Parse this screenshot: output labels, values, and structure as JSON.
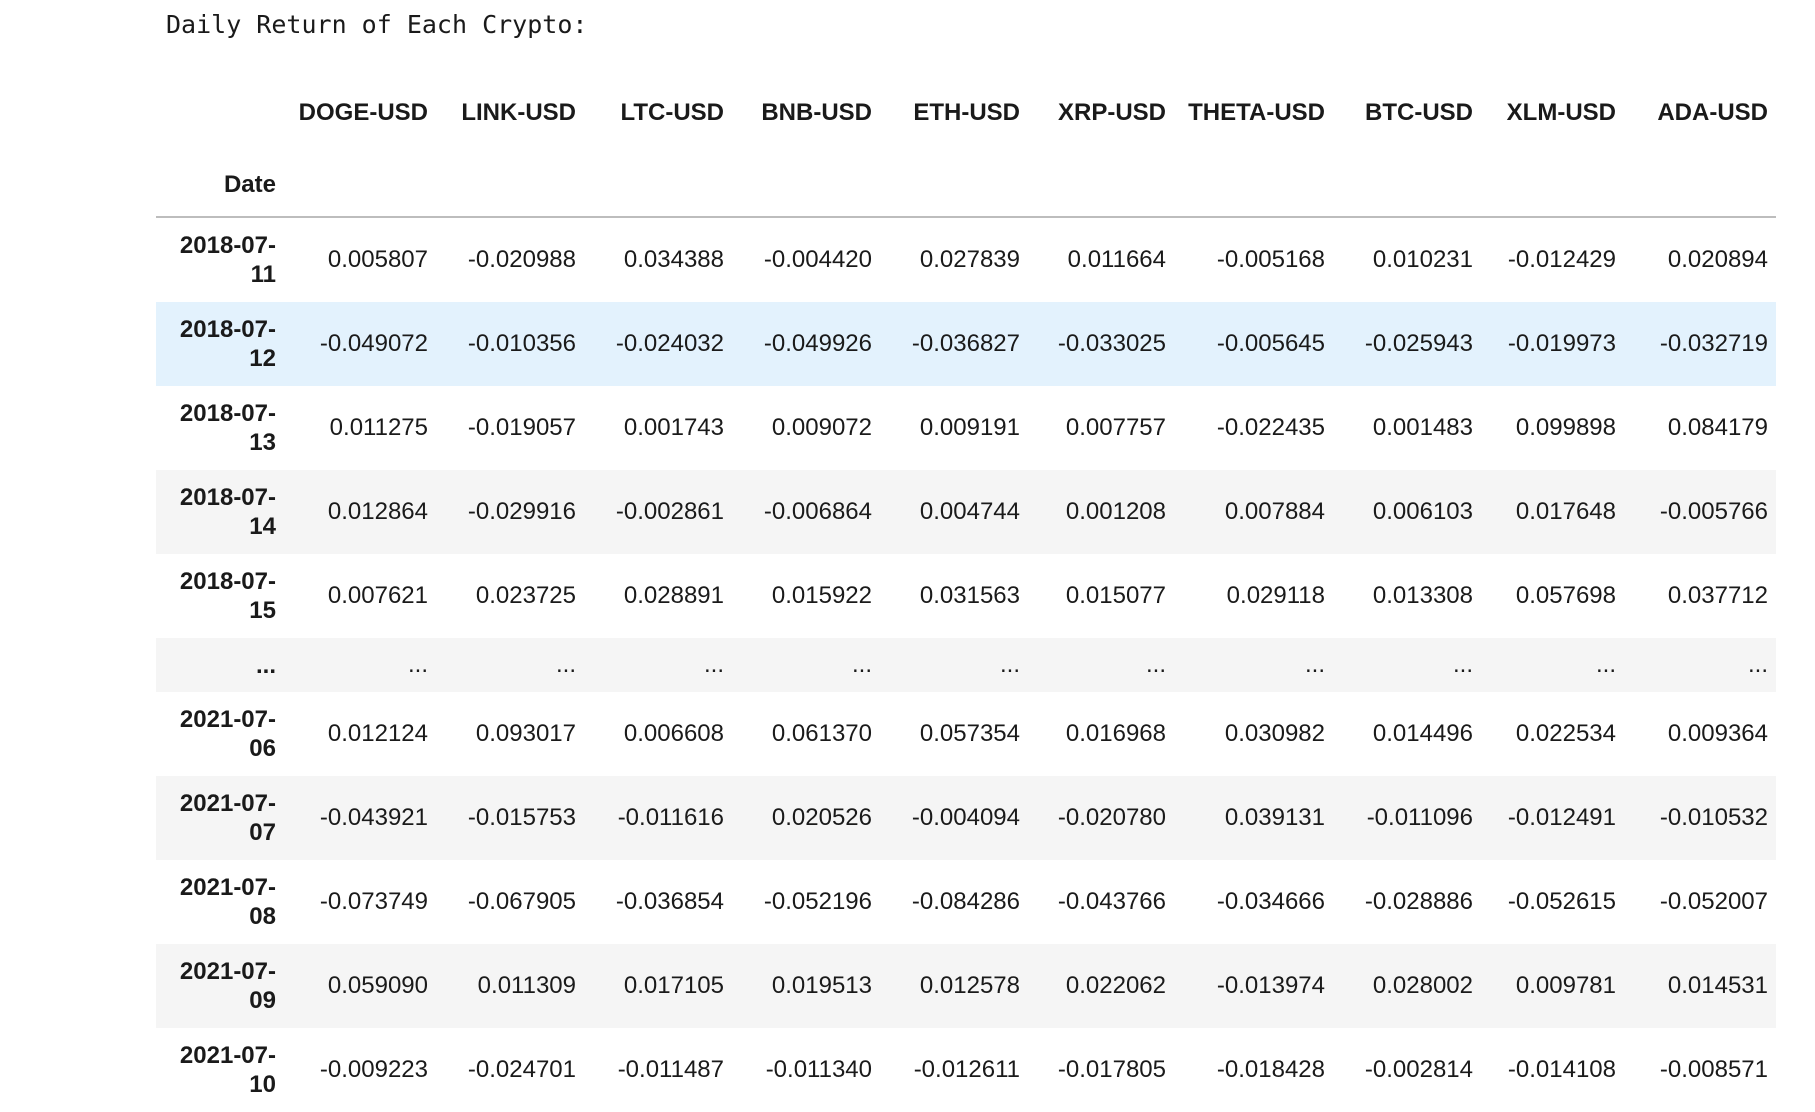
{
  "output": {
    "title": "Daily Return of Each Crypto:"
  },
  "table": {
    "index_name": "Date",
    "columns": [
      "DOGE-USD",
      "LINK-USD",
      "LTC-USD",
      "BNB-USD",
      "ETH-USD",
      "XRP-USD",
      "THETA-USD",
      "BTC-USD",
      "XLM-USD",
      "ADA-USD"
    ],
    "rows": [
      {
        "date": "2018-07-11",
        "values": [
          "0.005807",
          "-0.020988",
          "0.034388",
          "-0.004420",
          "0.027839",
          "0.011664",
          "-0.005168",
          "0.010231",
          "-0.012429",
          "0.020894"
        ]
      },
      {
        "date": "2018-07-12",
        "values": [
          "-0.049072",
          "-0.010356",
          "-0.024032",
          "-0.049926",
          "-0.036827",
          "-0.033025",
          "-0.005645",
          "-0.025943",
          "-0.019973",
          "-0.032719"
        ]
      },
      {
        "date": "2018-07-13",
        "values": [
          "0.011275",
          "-0.019057",
          "0.001743",
          "0.009072",
          "0.009191",
          "0.007757",
          "-0.022435",
          "0.001483",
          "0.099898",
          "0.084179"
        ]
      },
      {
        "date": "2018-07-14",
        "values": [
          "0.012864",
          "-0.029916",
          "-0.002861",
          "-0.006864",
          "0.004744",
          "0.001208",
          "0.007884",
          "0.006103",
          "0.017648",
          "-0.005766"
        ]
      },
      {
        "date": "2018-07-15",
        "values": [
          "0.007621",
          "0.023725",
          "0.028891",
          "0.015922",
          "0.031563",
          "0.015077",
          "0.029118",
          "0.013308",
          "0.057698",
          "0.037712"
        ]
      },
      {
        "date": "...",
        "values": [
          "...",
          "...",
          "...",
          "...",
          "...",
          "...",
          "...",
          "...",
          "...",
          "..."
        ]
      },
      {
        "date": "2021-07-06",
        "values": [
          "0.012124",
          "0.093017",
          "0.006608",
          "0.061370",
          "0.057354",
          "0.016968",
          "0.030982",
          "0.014496",
          "0.022534",
          "0.009364"
        ]
      },
      {
        "date": "2021-07-07",
        "values": [
          "-0.043921",
          "-0.015753",
          "-0.011616",
          "0.020526",
          "-0.004094",
          "-0.020780",
          "0.039131",
          "-0.011096",
          "-0.012491",
          "-0.010532"
        ]
      },
      {
        "date": "2021-07-08",
        "values": [
          "-0.073749",
          "-0.067905",
          "-0.036854",
          "-0.052196",
          "-0.084286",
          "-0.043766",
          "-0.034666",
          "-0.028886",
          "-0.052615",
          "-0.052007"
        ]
      },
      {
        "date": "2021-07-09",
        "values": [
          "0.059090",
          "0.011309",
          "0.017105",
          "0.019513",
          "0.012578",
          "0.022062",
          "-0.013974",
          "0.028002",
          "0.009781",
          "0.014531"
        ]
      },
      {
        "date": "2021-07-10",
        "values": [
          "-0.009223",
          "-0.024701",
          "-0.011487",
          "-0.011340",
          "-0.012611",
          "-0.017805",
          "-0.018428",
          "-0.002814",
          "-0.014108",
          "-0.008571"
        ]
      }
    ]
  },
  "colors": {
    "stripe_row": "#f5f5f5",
    "hover_row": "#e3f2fd",
    "header_rule": "#bdbdbd"
  }
}
